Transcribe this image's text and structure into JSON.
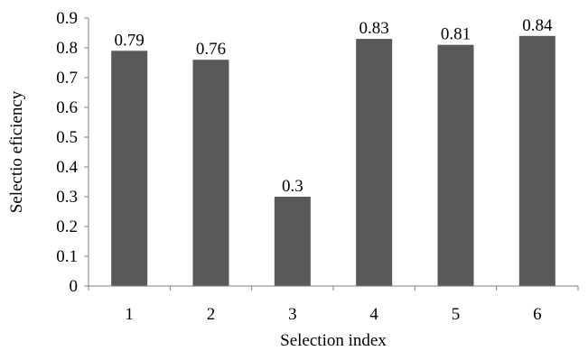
{
  "chart_data": {
    "type": "bar",
    "categories": [
      "1",
      "2",
      "3",
      "4",
      "5",
      "6"
    ],
    "values": [
      0.79,
      0.76,
      0.3,
      0.83,
      0.81,
      0.84
    ],
    "data_labels": [
      "0.79",
      "0.76",
      "0.3",
      "0.83",
      "0.81",
      "0.84"
    ],
    "xlabel": "Selection index",
    "ylabel": "Selectio eficiency",
    "ylim": [
      0,
      0.9
    ],
    "yticks": [
      0,
      0.1,
      0.2,
      0.3,
      0.4,
      0.5,
      0.6,
      0.7,
      0.8,
      0.9
    ],
    "ytick_labels": [
      "0",
      "0.1",
      "0.2",
      "0.3",
      "0.4",
      "0.5",
      "0.6",
      "0.7",
      "0.8",
      "0.9"
    ],
    "grid": false,
    "legend": "none",
    "colors": {
      "bar": "#595959",
      "axis": "#7f7f7f",
      "text": "#000000"
    }
  }
}
